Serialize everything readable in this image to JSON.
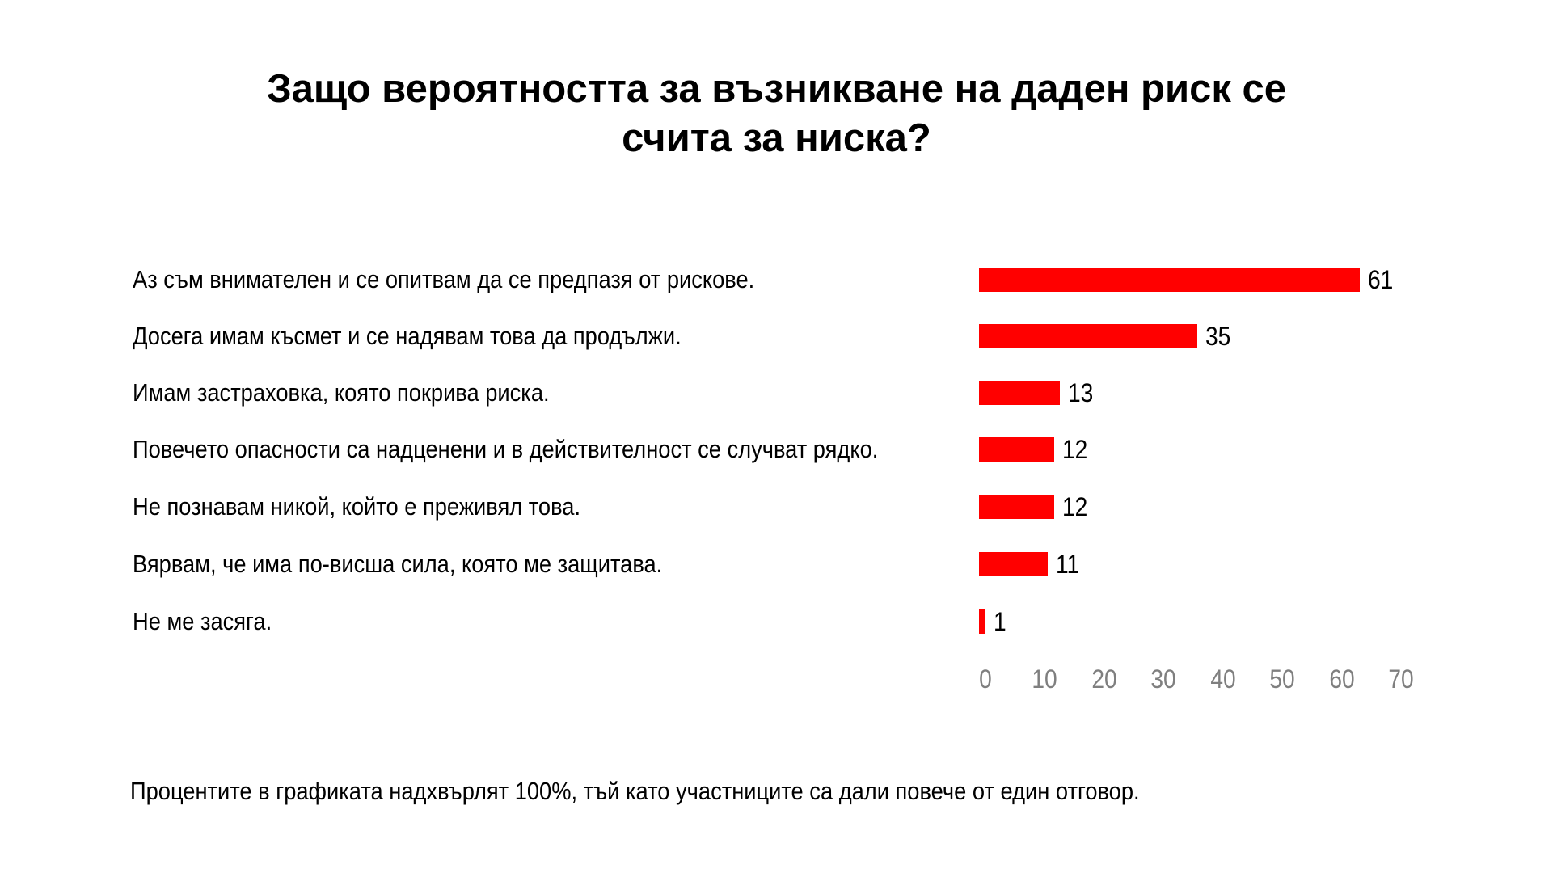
{
  "chart_data": {
    "type": "bar",
    "orientation": "horizontal",
    "title": "Защо вероятността за възникване на даден риск се считa за ниска?",
    "title_lines": [
      "Защо вероятността за възникване на даден риск се",
      "счита за ниска?"
    ],
    "categories": [
      "Аз съм внимателен и се опитвам да се предпазя от рискове.",
      "Досега имам късмет и се надявам това да продължи.",
      "Имам застраховка, която покрива риска.",
      "Повечето опасности са надценени и в действителност се случват рядко.",
      "Не познавам никой, който е преживял това.",
      "Вярвам, че има по-висша сила, която ме защитава.",
      "Не ме засяга."
    ],
    "values": [
      61,
      35,
      13,
      12,
      12,
      11,
      1
    ],
    "xlim": [
      0,
      70
    ],
    "xticks": [
      "0",
      "10",
      "20",
      "30",
      "40",
      "50",
      "60",
      "70"
    ],
    "grid": false,
    "data_labels": true,
    "colors": {
      "bar": "#ff0000",
      "tick_text": "#7f7f7f"
    },
    "footnote": "Процентите в графиката надхвърлят 100%, тъй като участниците са дали повече от един отговор."
  }
}
